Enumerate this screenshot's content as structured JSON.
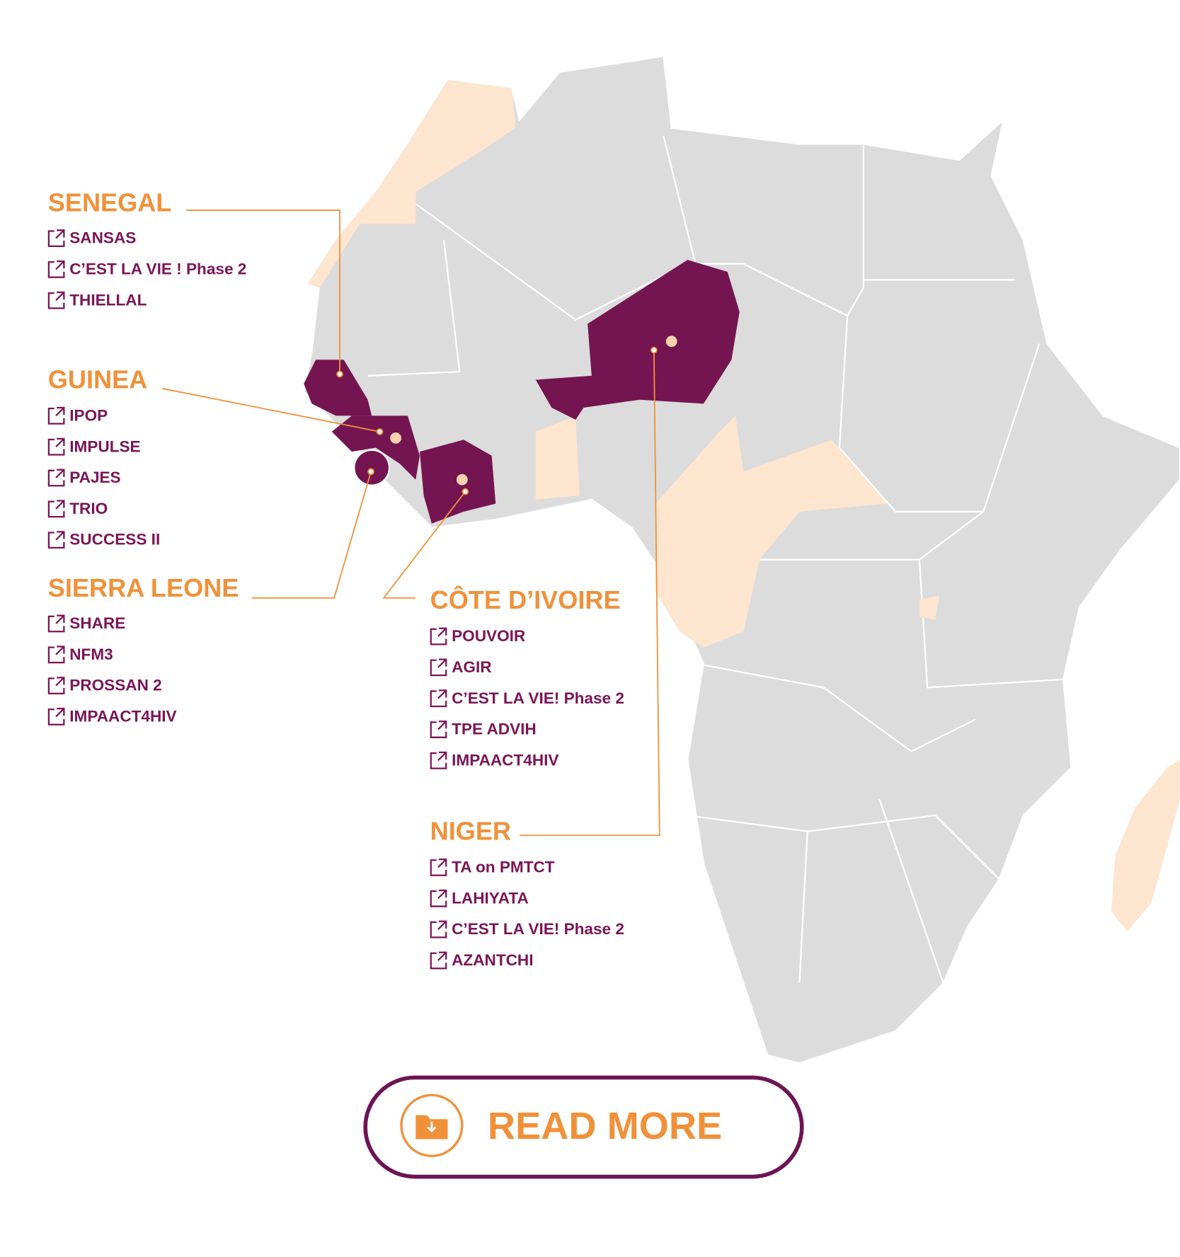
{
  "regions": [
    {
      "name": "SENEGAL",
      "projects": [
        "SANSAS",
        "C’EST LA VIE ! Phase 2",
        "THIELLAL"
      ]
    },
    {
      "name": "GUINEA",
      "projects": [
        "IPOP",
        "IMPULSE",
        "PAJES",
        "TRIO",
        "SUCCESS II"
      ]
    },
    {
      "name": "SIERRA LEONE",
      "projects": [
        "SHARE",
        "NFM3",
        "PROSSAN 2",
        "IMPAACT4HIV"
      ]
    },
    {
      "name": "CÔTE D’IVOIRE",
      "projects": [
        "POUVOIR",
        "AGIR",
        "C’EST LA VIE! Phase 2",
        "TPE ADVIH",
        "IMPAACT4HIV"
      ]
    },
    {
      "name": "NIGER",
      "projects": [
        "TA on PMTCT",
        "LAHIYATA",
        "C’EST LA VIE! Phase 2",
        "AZANTCHI"
      ]
    }
  ],
  "button": {
    "label": "READ MORE"
  }
}
